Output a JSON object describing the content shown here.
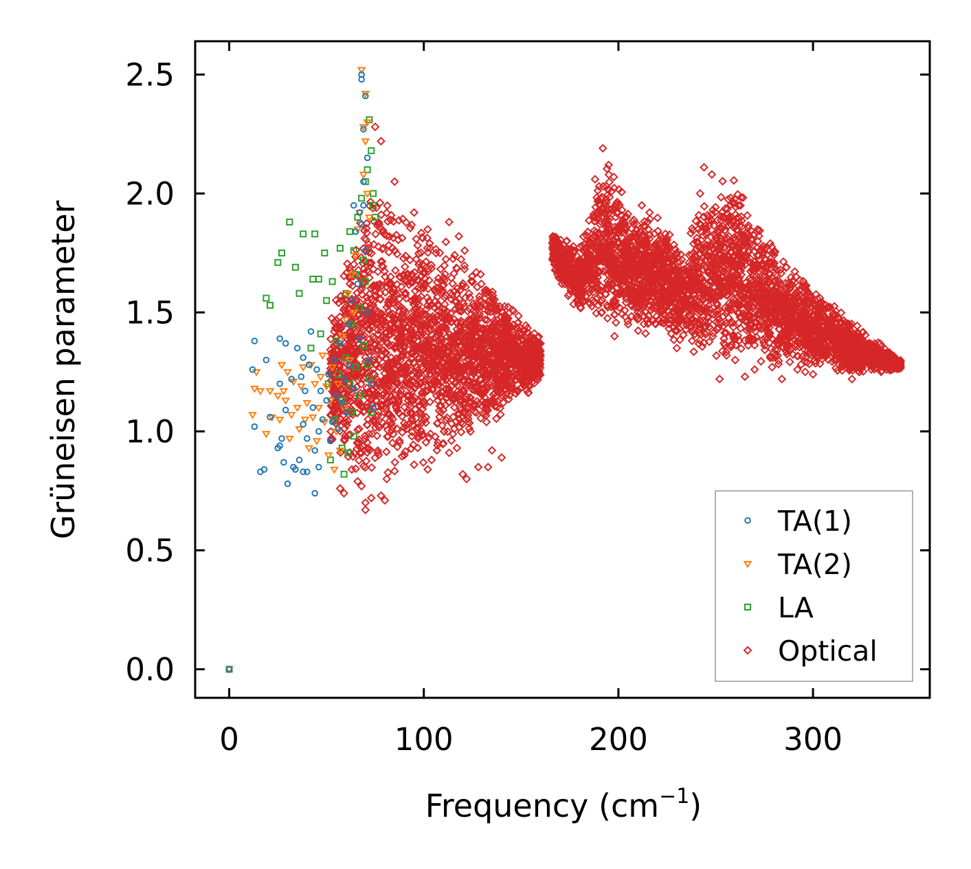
{
  "chart_data": {
    "type": "scatter",
    "xlabel": "Frequency (cm",
    "xlabel_sup": "−1",
    "xlabel_close": ")",
    "ylabel": "Grüneisen parameter",
    "xlim": [
      -17.5,
      360
    ],
    "ylim": [
      -0.12,
      2.64
    ],
    "xticks": [
      0,
      100,
      200,
      300
    ],
    "xtick_labels": [
      "0",
      "100",
      "200",
      "300"
    ],
    "yticks": [
      0.0,
      0.5,
      1.0,
      1.5,
      2.0,
      2.5
    ],
    "ytick_labels": [
      "0.0",
      "0.5",
      "1.0",
      "1.5",
      "2.0",
      "2.5"
    ],
    "grid": false,
    "legend_position": "bottom-right",
    "series": [
      {
        "name": "TA(1)",
        "marker": "circle",
        "color": "#1f77b4",
        "points": [
          [
            0,
            0
          ],
          [
            13,
            1.38
          ],
          [
            12,
            1.26
          ],
          [
            13,
            1.02
          ],
          [
            16,
            0.83
          ],
          [
            18,
            0.84
          ],
          [
            19,
            1.3
          ],
          [
            21,
            1.06
          ],
          [
            25,
            0.93
          ],
          [
            26,
            1.2
          ],
          [
            26,
            0.94
          ],
          [
            27,
            0.97
          ],
          [
            26,
            1.39
          ],
          [
            28,
            0.87
          ],
          [
            29,
            1.37
          ],
          [
            29,
            1.09
          ],
          [
            30,
            0.78
          ],
          [
            32,
            1.22
          ],
          [
            33,
            0.85
          ],
          [
            34,
            0.84
          ],
          [
            35,
            1.35
          ],
          [
            37,
            1.23
          ],
          [
            36,
            0.88
          ],
          [
            38,
            1.03
          ],
          [
            38,
            1.31
          ],
          [
            38,
            0.83
          ],
          [
            39,
            1.17
          ],
          [
            40,
            0.97
          ],
          [
            40,
            0.83
          ],
          [
            41,
            1.28
          ],
          [
            42,
            1.42
          ],
          [
            43,
            1.1
          ],
          [
            44,
            0.74
          ],
          [
            44,
            0.92
          ],
          [
            45,
            1.26
          ],
          [
            46,
            1.0
          ],
          [
            46,
            0.85
          ],
          [
            47,
            1.17
          ],
          [
            48,
            1.05
          ],
          [
            50,
            1.13
          ],
          [
            51,
            1.24
          ],
          [
            52,
            0.96
          ],
          [
            53,
            1.04
          ],
          [
            54,
            1.3
          ],
          [
            55,
            1.15
          ],
          [
            56,
            1.01
          ],
          [
            57,
            1.37
          ],
          [
            58,
            1.12
          ],
          [
            59,
            1.22
          ],
          [
            60,
            1.08
          ],
          [
            61,
            1.45
          ],
          [
            62,
            1.28
          ],
          [
            63,
            1.55
          ],
          [
            64,
            1.18
          ],
          [
            64,
            1.95
          ],
          [
            65,
            1.84
          ],
          [
            66,
            1.62
          ],
          [
            67,
            1.92
          ],
          [
            67,
            1.39
          ],
          [
            68,
            2.5
          ],
          [
            68,
            2.48
          ],
          [
            68,
            1.87
          ],
          [
            69,
            2.27
          ],
          [
            69,
            2.05
          ],
          [
            69,
            1.95
          ],
          [
            70,
            2.41
          ],
          [
            70,
            1.76
          ],
          [
            71,
            2.15
          ],
          [
            71,
            1.5
          ],
          [
            72,
            1.3
          ],
          [
            73,
            1.2
          ],
          [
            74,
            1.1
          ]
        ]
      },
      {
        "name": "TA(2)",
        "marker": "triangle",
        "color": "#ff7f0e",
        "points": [
          [
            0,
            0
          ],
          [
            12,
            1.07
          ],
          [
            13,
            1.18
          ],
          [
            14,
            1.25
          ],
          [
            16,
            1.17
          ],
          [
            19,
            0.99
          ],
          [
            21,
            1.17
          ],
          [
            22,
            1.06
          ],
          [
            25,
            1.15
          ],
          [
            26,
            1.05
          ],
          [
            27,
            1.28
          ],
          [
            28,
            1.17
          ],
          [
            29,
            1.13
          ],
          [
            30,
            1.25
          ],
          [
            31,
            0.97
          ],
          [
            32,
            1.07
          ],
          [
            33,
            1.21
          ],
          [
            35,
            1.1
          ],
          [
            36,
            1.01
          ],
          [
            37,
            1.19
          ],
          [
            38,
            1.27
          ],
          [
            39,
            1.05
          ],
          [
            40,
            1.12
          ],
          [
            41,
            0.93
          ],
          [
            42,
            1.28
          ],
          [
            43,
            1.06
          ],
          [
            44,
            1.2
          ],
          [
            45,
            0.96
          ],
          [
            46,
            1.1
          ],
          [
            47,
            1.23
          ],
          [
            48,
            1.32
          ],
          [
            49,
            1.04
          ],
          [
            50,
            1.19
          ],
          [
            51,
            0.9
          ],
          [
            52,
            1.13
          ],
          [
            53,
            1.27
          ],
          [
            54,
            0.84
          ],
          [
            55,
            1.0
          ],
          [
            56,
            1.2
          ],
          [
            57,
            0.92
          ],
          [
            58,
            1.4
          ],
          [
            59,
            1.1
          ],
          [
            60,
            1.47
          ],
          [
            61,
            1.58
          ],
          [
            62,
            1.3
          ],
          [
            63,
            1.66
          ],
          [
            64,
            1.5
          ],
          [
            65,
            1.74
          ],
          [
            66,
            1.85
          ],
          [
            67,
            1.92
          ],
          [
            68,
            2.52
          ],
          [
            69,
            2.28
          ],
          [
            69,
            2.08
          ],
          [
            70,
            2.42
          ],
          [
            70,
            2.22
          ],
          [
            71,
            2.3
          ],
          [
            71,
            2.0
          ],
          [
            72,
            1.9
          ]
        ]
      },
      {
        "name": "LA",
        "marker": "square",
        "color": "#2ca02c",
        "points": [
          [
            0,
            0
          ],
          [
            19,
            1.56
          ],
          [
            21,
            1.53
          ],
          [
            25,
            1.71
          ],
          [
            27,
            1.75
          ],
          [
            31,
            1.88
          ],
          [
            34,
            1.69
          ],
          [
            36,
            1.58
          ],
          [
            38,
            1.83
          ],
          [
            42,
            1.35
          ],
          [
            43,
            1.64
          ],
          [
            44,
            1.83
          ],
          [
            46,
            1.64
          ],
          [
            47,
            1.41
          ],
          [
            49,
            1.75
          ],
          [
            50,
            1.55
          ],
          [
            51,
            1.2
          ],
          [
            52,
            0.88
          ],
          [
            53,
            1.63
          ],
          [
            54,
            1.05
          ],
          [
            55,
            1.38
          ],
          [
            56,
            1.24
          ],
          [
            57,
            1.77
          ],
          [
            58,
            0.93
          ],
          [
            58,
            1.13
          ],
          [
            59,
            0.82
          ],
          [
            60,
            1.58
          ],
          [
            60,
            1.31
          ],
          [
            61,
            0.91
          ],
          [
            62,
            1.84
          ],
          [
            62,
            1.2
          ],
          [
            63,
            1.45
          ],
          [
            63,
            1.08
          ],
          [
            64,
            1.76
          ],
          [
            64,
            0.98
          ],
          [
            65,
            1.66
          ],
          [
            65,
            1.27
          ],
          [
            66,
            1.9
          ],
          [
            67,
            1.52
          ],
          [
            67,
            1.15
          ],
          [
            68,
            1.98
          ],
          [
            69,
            1.72
          ],
          [
            69,
            1.36
          ],
          [
            70,
            2.05
          ],
          [
            70,
            1.63
          ],
          [
            71,
            2.1
          ],
          [
            71,
            1.28
          ],
          [
            72,
            2.31
          ],
          [
            72,
            1.22
          ],
          [
            73,
            2.18
          ],
          [
            73,
            1.08
          ],
          [
            74,
            2.0
          ],
          [
            74,
            1.95
          ],
          [
            75,
            1.9
          ]
        ]
      },
      {
        "name": "Optical",
        "marker": "diamond",
        "color": "#d62728",
        "clusters": [
          {
            "x": [
              52,
              160
            ],
            "y_top": [
              1.5,
              2.05,
              1.9,
              1.78,
              1.6,
              1.4
            ],
            "y_bottom": [
              0.92,
              0.72,
              0.82,
              0.92,
              1.05,
              1.2
            ],
            "count": 2400
          },
          {
            "x": [
              166,
              235
            ],
            "y_top": [
              1.85,
              1.78,
              2.15,
              1.95,
              1.9,
              1.75
            ],
            "y_bottom": [
              1.65,
              1.5,
              1.42,
              1.42,
              1.38,
              1.35
            ],
            "count": 1400
          },
          {
            "x": [
              235,
              345
            ],
            "y_top": [
              1.85,
              2.12,
              1.8,
              1.6,
              1.45,
              1.3
            ],
            "y_bottom": [
              1.32,
              1.28,
              1.28,
              1.26,
              1.24,
              1.26
            ],
            "count": 2000
          }
        ],
        "outliers": [
          [
            57,
            0.76
          ],
          [
            59,
            0.74
          ],
          [
            63,
            0.84
          ],
          [
            66,
            0.79
          ],
          [
            68,
            0.77
          ],
          [
            70,
            0.67
          ],
          [
            70,
            0.7
          ],
          [
            73,
            0.72
          ],
          [
            78,
            0.73
          ],
          [
            80,
            0.71
          ],
          [
            90,
            0.9
          ],
          [
            95,
            0.86
          ],
          [
            102,
            0.84
          ],
          [
            104,
            0.88
          ],
          [
            110,
            0.95
          ],
          [
            113,
            0.91
          ],
          [
            117,
            0.93
          ],
          [
            120,
            0.82
          ],
          [
            122,
            0.8
          ],
          [
            128,
            0.85
          ],
          [
            133,
            0.85
          ],
          [
            135,
            0.92
          ],
          [
            140,
            0.89
          ],
          [
            113,
            1.88
          ],
          [
            118,
            1.82
          ],
          [
            121,
            1.76
          ],
          [
            95,
            1.92
          ],
          [
            85,
            2.05
          ],
          [
            75,
            2.28
          ],
          [
            78,
            2.22
          ],
          [
            192,
            2.19
          ],
          [
            195,
            2.12
          ],
          [
            188,
            2.06
          ],
          [
            198,
            1.4
          ],
          [
            205,
            1.45
          ],
          [
            210,
            1.5
          ],
          [
            212,
            1.95
          ],
          [
            216,
            1.92
          ],
          [
            222,
            1.58
          ],
          [
            230,
            1.35
          ],
          [
            244,
            2.11
          ],
          [
            248,
            2.08
          ],
          [
            242,
            2.0
          ],
          [
            252,
            1.22
          ],
          [
            260,
            1.3
          ],
          [
            265,
            1.23
          ],
          [
            270,
            1.26
          ],
          [
            279,
            1.27
          ],
          [
            284,
            1.22
          ],
          [
            292,
            1.26
          ],
          [
            296,
            1.25
          ],
          [
            300,
            1.24
          ],
          [
            310,
            1.33
          ],
          [
            315,
            1.28
          ],
          [
            320,
            1.22
          ],
          [
            325,
            1.27
          ],
          [
            330,
            1.26
          ],
          [
            335,
            1.25
          ],
          [
            340,
            1.26
          ],
          [
            345,
            1.27
          ]
        ]
      }
    ]
  }
}
